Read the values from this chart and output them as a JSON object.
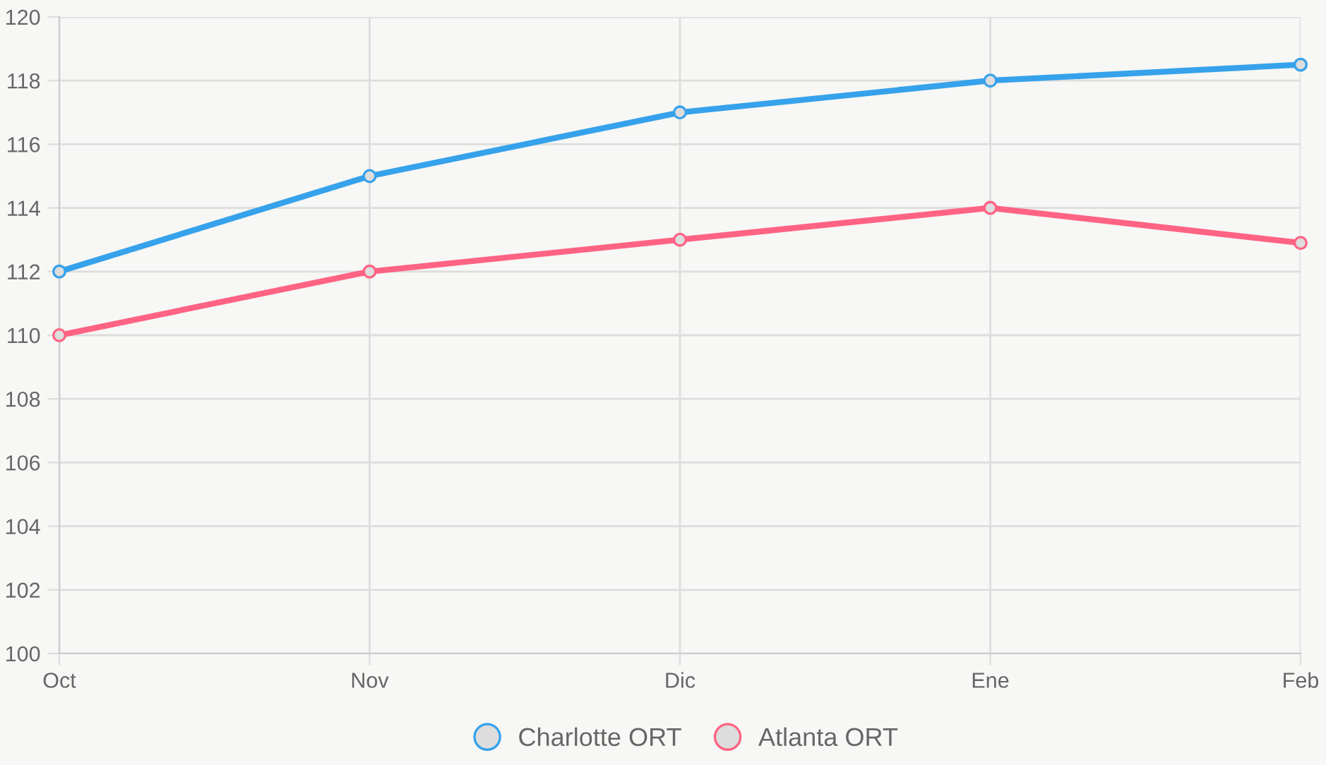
{
  "chart_data": {
    "type": "line",
    "categories": [
      "Oct",
      "Nov",
      "Dic",
      "Ene",
      "Feb"
    ],
    "series": [
      {
        "name": "Charlotte ORT",
        "color": "#36a2eb",
        "values": [
          112,
          115,
          117,
          118,
          118.5
        ]
      },
      {
        "name": "Atlanta ORT",
        "color": "#ff6384",
        "values": [
          110,
          112,
          113,
          114,
          112.9
        ]
      }
    ],
    "ylim": [
      100,
      120
    ],
    "yticks": [
      100,
      102,
      104,
      106,
      108,
      110,
      112,
      114,
      116,
      118,
      120
    ],
    "grid": true,
    "legend": "bottom",
    "marker": "circle",
    "line_style": "solid"
  }
}
